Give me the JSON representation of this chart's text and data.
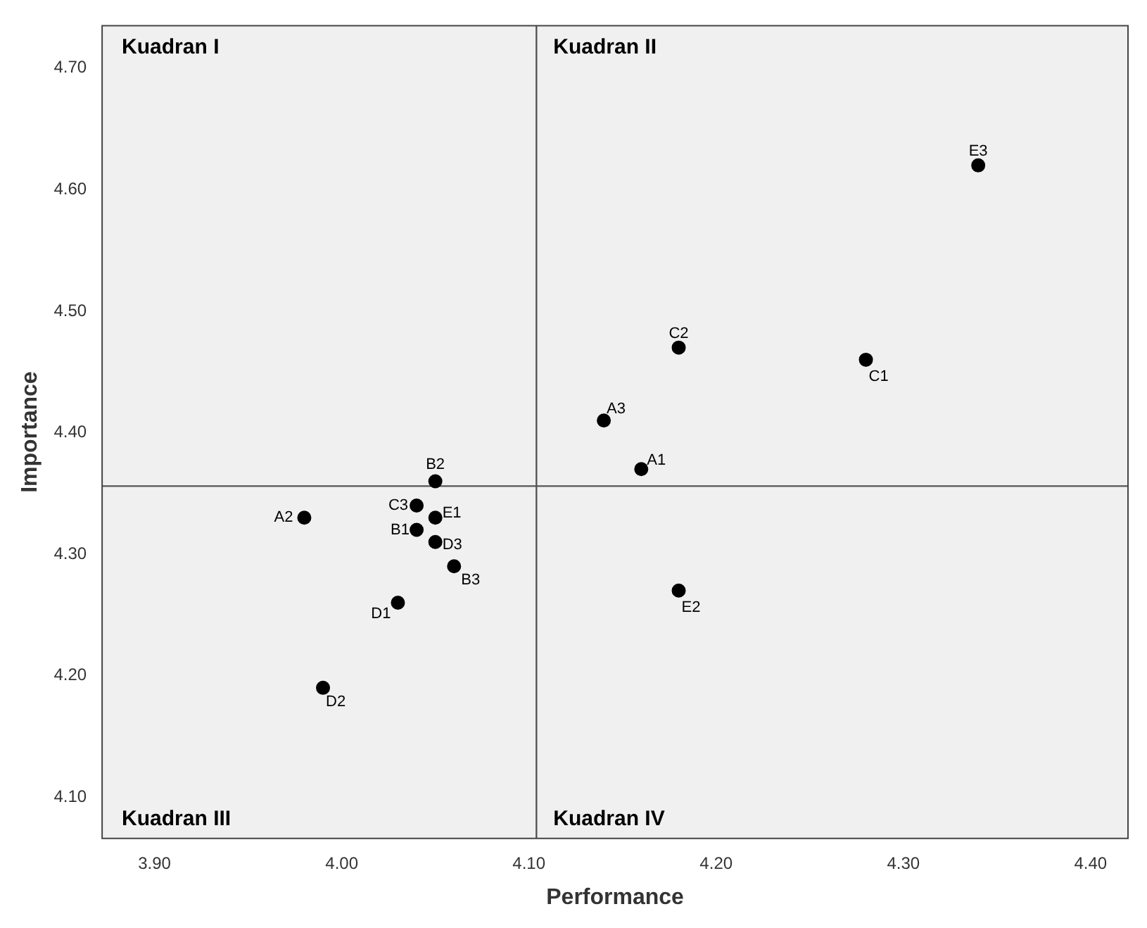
{
  "chart_data": {
    "type": "scatter",
    "xlabel": "Performance",
    "ylabel": "Importance",
    "x": [
      4.34,
      4.18,
      4.28,
      4.14,
      4.16,
      4.05,
      4.04,
      4.05,
      3.98,
      4.04,
      4.05,
      4.06,
      4.03,
      4.18,
      3.99
    ],
    "values": [
      4.62,
      4.47,
      4.46,
      4.41,
      4.37,
      4.36,
      4.34,
      4.33,
      4.33,
      4.32,
      4.31,
      4.29,
      4.26,
      4.27,
      4.19
    ],
    "color": "#000000",
    "marker": "circle",
    "grid": false,
    "xlim": [
      3.872,
      4.42
    ],
    "xticks": [
      {
        "value": 3.9,
        "label": "3.90"
      },
      {
        "value": 4.0,
        "label": "4.00"
      },
      {
        "value": 4.1,
        "label": "4.10"
      },
      {
        "value": 4.2,
        "label": "4.20"
      },
      {
        "value": 4.3,
        "label": "4.30"
      },
      {
        "value": 4.4,
        "label": "4.40"
      }
    ],
    "ylim": [
      4.066,
      4.735
    ],
    "yticks": [
      {
        "value": 4.1,
        "label": "4.10"
      },
      {
        "value": 4.2,
        "label": "4.20"
      },
      {
        "value": 4.3,
        "label": "4.30"
      },
      {
        "value": 4.4,
        "label": "4.40"
      },
      {
        "value": 4.5,
        "label": "4.50"
      },
      {
        "value": 4.6,
        "label": "4.60"
      },
      {
        "value": 4.7,
        "label": "4.70"
      }
    ],
    "ref_lines": [
      {
        "axis": "x",
        "value": 4.104,
        "color": "#555555"
      },
      {
        "axis": "y",
        "value": 4.356,
        "color": "#555555"
      }
    ],
    "annotations": [
      "Kuadran I",
      "Kuadran II",
      "Kuadran III",
      "Kuadran IV",
      {
        "text": "E3",
        "x": 4.34,
        "y": 4.62
      },
      {
        "text": "C2",
        "x": 4.18,
        "y": 4.47
      },
      {
        "text": "C1",
        "x": 4.28,
        "y": 4.46
      },
      {
        "text": "A3",
        "x": 4.14,
        "y": 4.41
      },
      {
        "text": "A1",
        "x": 4.16,
        "y": 4.37
      },
      {
        "text": "B2",
        "x": 4.05,
        "y": 4.36
      },
      {
        "text": "C3",
        "x": 4.04,
        "y": 4.34
      },
      {
        "text": "E1",
        "x": 4.05,
        "y": 4.33
      },
      {
        "text": "A2",
        "x": 3.98,
        "y": 4.33
      },
      {
        "text": "B1",
        "x": 4.04,
        "y": 4.32
      },
      {
        "text": "D3",
        "x": 4.05,
        "y": 4.31
      },
      {
        "text": "B3",
        "x": 4.06,
        "y": 4.29
      },
      {
        "text": "D1",
        "x": 4.03,
        "y": 4.26
      },
      {
        "text": "E2",
        "x": 4.18,
        "y": 4.27
      },
      {
        "text": "D2",
        "x": 3.99,
        "y": 4.19
      }
    ]
  }
}
